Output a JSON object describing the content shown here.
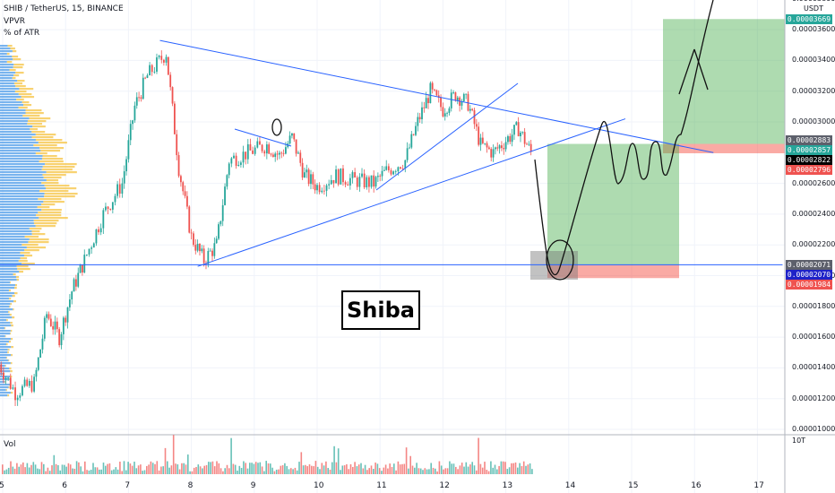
{
  "header": {
    "symbol": "SHIB / TetherUS, 15, BINANCE",
    "indicator_vpvr": "VPVR",
    "indicator_atr": "% of ATR"
  },
  "volume_pane": {
    "label": "Vol",
    "scale_label": "10T"
  },
  "annotation": {
    "label": "Shiba"
  },
  "colors": {
    "up": "#26a69a",
    "down": "#ef5350",
    "trendline": "#2962ff",
    "profile_blue": "#4c9be8",
    "profile_yellow": "#f5c342",
    "target_zone": "#4caf50",
    "stop_zone": "#f44336"
  },
  "chart_data": {
    "type": "candlestick",
    "y_axis": {
      "unit": "USDT",
      "ylim": [
        1e-05,
        3.8e-05
      ],
      "ticks": [
        "0.00001000",
        "0.00001200",
        "0.00001400",
        "0.00001600",
        "0.00001800",
        "0.00002000",
        "0.00002200",
        "0.00002400",
        "0.00002600",
        "0.00003000",
        "0.00003200",
        "0.00003400",
        "0.00003600",
        "0.00003800"
      ]
    },
    "x_axis": {
      "ticks": [
        "5",
        "6",
        "7",
        "8",
        "9",
        "10",
        "11",
        "12",
        "13",
        "14",
        "15",
        "16",
        "17"
      ]
    },
    "price_badges": [
      {
        "value": "0.00003669",
        "color": "#26a69a"
      },
      {
        "value": "0.00002883",
        "color": "#5d606b"
      },
      {
        "value": "0.00002857",
        "color": "#26a69a"
      },
      {
        "value": "0.00002822",
        "color": "#000000"
      },
      {
        "value": "0.00002796",
        "color": "#ef5350"
      },
      {
        "value": "0.00002071",
        "color": "#5d606b"
      },
      {
        "value": "0.00002070",
        "color": "#1e22c8"
      },
      {
        "value": "0.00001984",
        "color": "#ef5350"
      }
    ],
    "price_path": [
      [
        4.9,
        1.45e-05
      ],
      [
        5.2,
        1.24e-05
      ],
      [
        5.5,
        1.3e-05
      ],
      [
        5.7,
        1.75e-05
      ],
      [
        5.9,
        1.6e-05
      ],
      [
        6.1,
        1.9e-05
      ],
      [
        6.3,
        2.1e-05
      ],
      [
        6.6,
        2.4e-05
      ],
      [
        6.9,
        2.6e-05
      ],
      [
        7.1,
        3.1e-05
      ],
      [
        7.3,
        3.3e-05
      ],
      [
        7.6,
        3.45e-05
      ],
      [
        7.8,
        2.7e-05
      ],
      [
        8.0,
        2.25e-05
      ],
      [
        8.2,
        2.1e-05
      ],
      [
        8.4,
        2.2e-05
      ],
      [
        8.6,
        2.75e-05
      ],
      [
        8.9,
        2.8e-05
      ],
      [
        9.2,
        2.85e-05
      ],
      [
        9.4,
        2.78e-05
      ],
      [
        9.6,
        2.9e-05
      ],
      [
        9.8,
        2.65e-05
      ],
      [
        10.0,
        2.58e-05
      ],
      [
        10.3,
        2.65e-05
      ],
      [
        10.6,
        2.62e-05
      ],
      [
        10.9,
        2.6e-05
      ],
      [
        11.1,
        2.68e-05
      ],
      [
        11.4,
        2.75e-05
      ],
      [
        11.6,
        3e-05
      ],
      [
        11.8,
        3.2e-05
      ],
      [
        12.0,
        3.08e-05
      ],
      [
        12.2,
        3.18e-05
      ],
      [
        12.4,
        3.12e-05
      ],
      [
        12.6,
        2.85e-05
      ],
      [
        12.8,
        2.8e-05
      ],
      [
        13.0,
        2.88e-05
      ],
      [
        13.2,
        2.96e-05
      ],
      [
        13.4,
        2.8e-05
      ]
    ],
    "trendlines": [
      {
        "name": "descending resistance",
        "from": [
          7.5,
          3.53e-05
        ],
        "to": [
          16.3,
          2.8e-05
        ]
      },
      {
        "name": "ascending support",
        "from": [
          8.1,
          2.06e-05
        ],
        "to": [
          14.9,
          3.02e-05
        ]
      },
      {
        "name": "horizontal support",
        "from": [
          4.8,
          2.071e-05
        ],
        "to": [
          17.4,
          2.071e-05
        ]
      }
    ],
    "positions": [
      {
        "type": "long",
        "entry": 2.857e-05,
        "target": 3.669e-05,
        "stop": 2.796e-05
      },
      {
        "type": "long",
        "entry": 2.071e-05,
        "target": 2.857e-05,
        "stop": 1.984e-05
      }
    ]
  }
}
